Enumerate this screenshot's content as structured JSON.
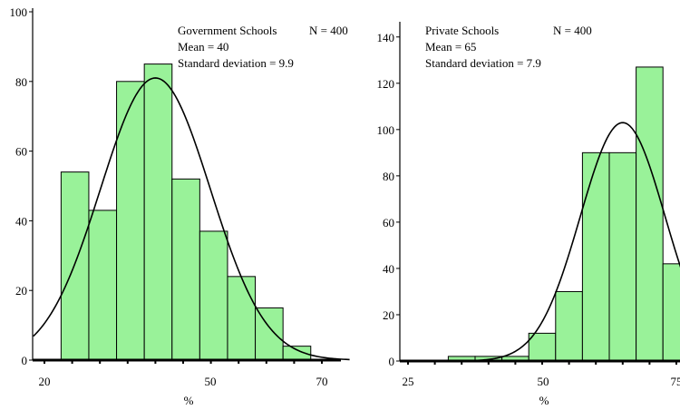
{
  "chart_data": [
    {
      "type": "bar",
      "subtype": "histogram-with-normal-curve",
      "title": "Government Schools",
      "n_label": "N = 400",
      "mean_label": "Mean = 40",
      "sd_label": "Standard deviation = 9.9",
      "mean": 40,
      "sd": 9.9,
      "curve_peak": 81,
      "xlabel": "%",
      "xlim": [
        18,
        75
      ],
      "ylim": [
        0,
        100
      ],
      "xticks": [
        "20",
        "50",
        "70"
      ],
      "yticks": [
        "0",
        "20",
        "40",
        "60",
        "80",
        "100"
      ],
      "bins": [
        {
          "start": 23,
          "end": 28,
          "value": 54
        },
        {
          "start": 28,
          "end": 33,
          "value": 43
        },
        {
          "start": 33,
          "end": 38,
          "value": 80
        },
        {
          "start": 38,
          "end": 43,
          "value": 85
        },
        {
          "start": 43,
          "end": 48,
          "value": 52
        },
        {
          "start": 48,
          "end": 53,
          "value": 37
        },
        {
          "start": 53,
          "end": 58,
          "value": 24
        },
        {
          "start": 58,
          "end": 63,
          "value": 15
        },
        {
          "start": 63,
          "end": 68,
          "value": 4
        }
      ],
      "bar_color": "#99f299"
    },
    {
      "type": "bar",
      "subtype": "histogram-with-normal-curve",
      "title": "Private Schools",
      "n_label": "N = 400",
      "mean_label": "Mean = 65",
      "sd_label": "Standard deviation = 7.9",
      "mean": 65,
      "sd": 7.9,
      "curve_peak": 103,
      "xlabel": "%",
      "xlim": [
        25,
        78
      ],
      "ylim": [
        0,
        145
      ],
      "xticks": [
        "25",
        "50",
        "75"
      ],
      "yticks": [
        "0",
        "20",
        "40",
        "60",
        "80",
        "100",
        "120",
        "140"
      ],
      "bins": [
        {
          "start": 25,
          "end": 32.5,
          "value": 0
        },
        {
          "start": 32.5,
          "end": 37.5,
          "value": 2
        },
        {
          "start": 37.5,
          "end": 42.5,
          "value": 2
        },
        {
          "start": 42.5,
          "end": 47.5,
          "value": 2
        },
        {
          "start": 47.5,
          "end": 52.5,
          "value": 12
        },
        {
          "start": 52.5,
          "end": 57.5,
          "value": 30
        },
        {
          "start": 57.5,
          "end": 62.5,
          "value": 90
        },
        {
          "start": 62.5,
          "end": 67.5,
          "value": 90
        },
        {
          "start": 67.5,
          "end": 72.5,
          "value": 127
        },
        {
          "start": 72.5,
          "end": 77.5,
          "value": 42
        }
      ],
      "bar_color": "#99f299"
    }
  ]
}
